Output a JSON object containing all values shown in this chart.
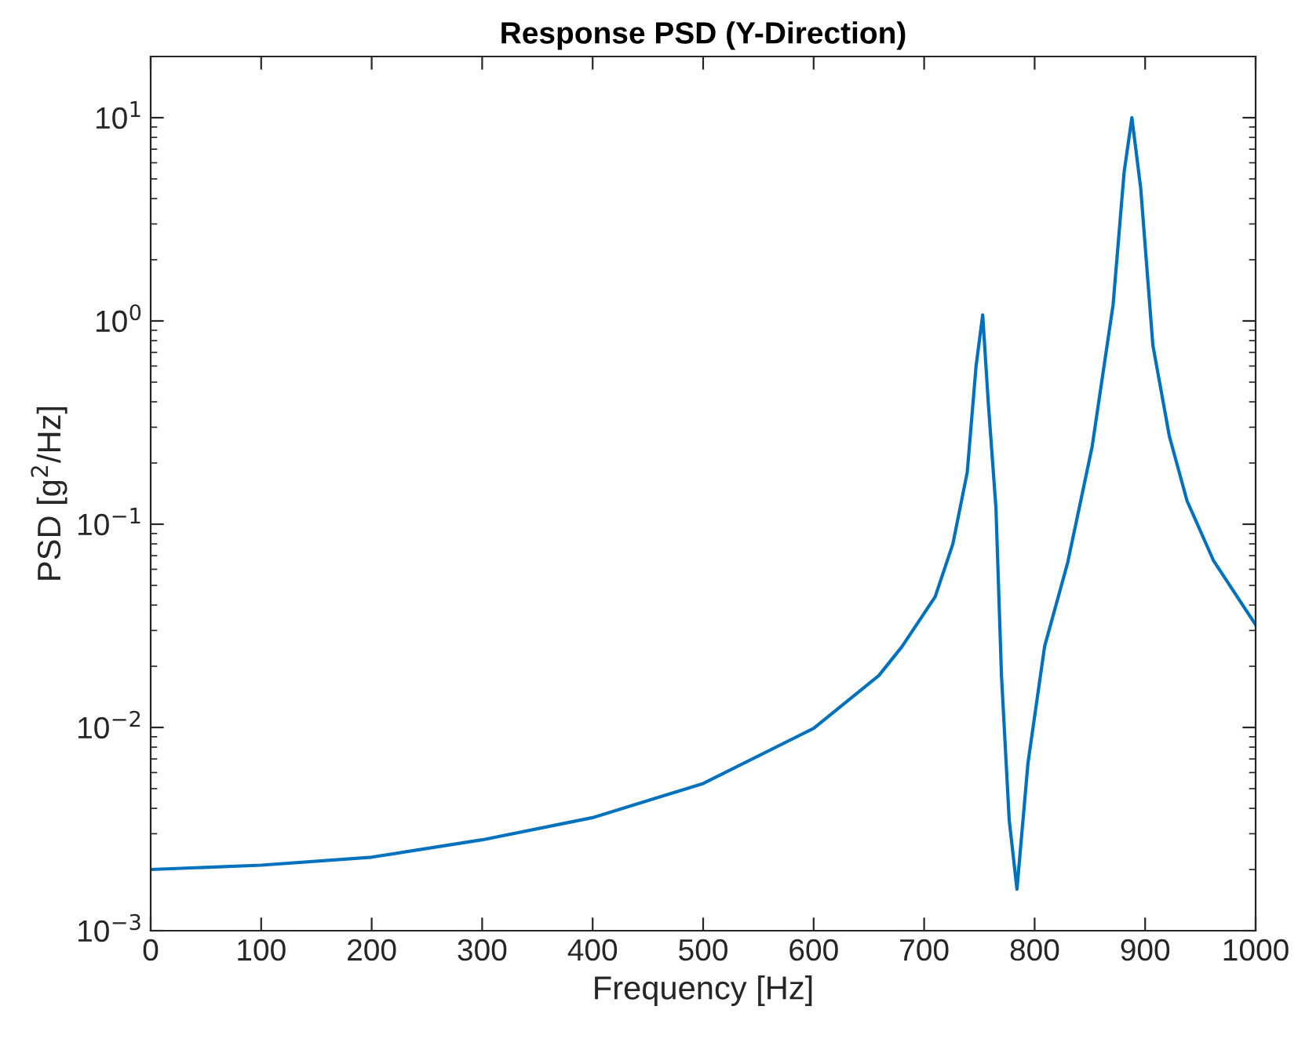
{
  "chart_data": {
    "type": "line",
    "title": "Response PSD (Y-Direction)",
    "xlabel": "Frequency [Hz]",
    "ylabel": "PSD [g$^{2}$/Hz]",
    "log": "y",
    "grid": false,
    "marker": "none",
    "line_style": "solid",
    "xlim": [
      0,
      1000
    ],
    "xticks": [
      0,
      100,
      200,
      300,
      400,
      500,
      600,
      700,
      800,
      900,
      1000
    ],
    "ylim": [
      0.001,
      20
    ],
    "yticks": [
      {
        "value": 0.001,
        "label": "10$^{−3}$"
      },
      {
        "value": 0.01,
        "label": "10$^{−2}$"
      },
      {
        "value": 0.1,
        "label": "10$^{−1}$"
      },
      {
        "value": 1,
        "label": "10$^{0}$"
      },
      {
        "value": 10,
        "label": "10$^{1}$"
      }
    ],
    "series": [
      {
        "color": "#0072bd",
        "x": [
          0,
          100,
          200,
          300,
          400,
          500,
          600,
          659,
          680,
          710,
          726,
          739,
          747,
          753,
          758,
          765,
          770,
          777,
          784,
          794,
          809,
          830,
          852,
          871,
          881,
          888,
          896,
          907,
          922,
          938,
          962,
          1000
        ],
        "values": [
          0.002,
          0.0021,
          0.0023,
          0.0028,
          0.0036,
          0.0053,
          0.0099,
          0.018,
          0.025,
          0.044,
          0.08,
          0.18,
          0.6,
          1.07,
          0.4,
          0.12,
          0.018,
          0.0035,
          0.0016,
          0.0067,
          0.025,
          0.065,
          0.24,
          1.2,
          5.4,
          10,
          4.5,
          0.76,
          0.27,
          0.13,
          0.066,
          0.032
        ]
      }
    ]
  }
}
